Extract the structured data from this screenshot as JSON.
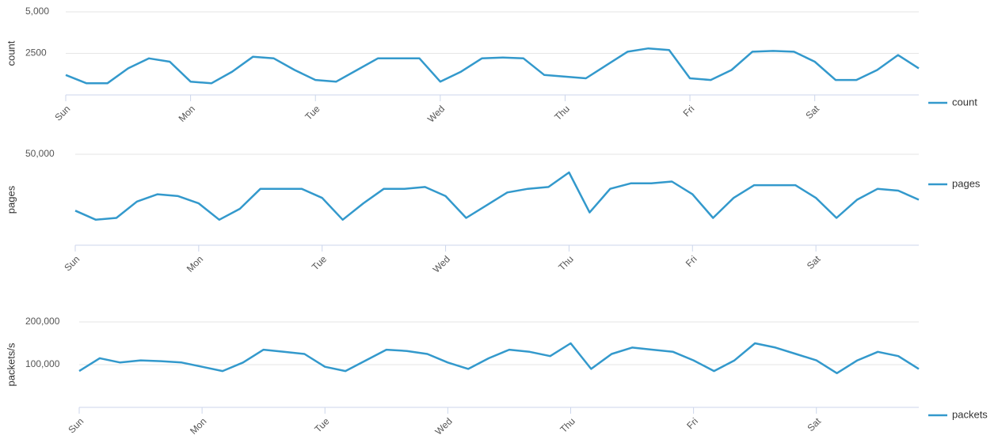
{
  "chart_data": [
    {
      "type": "line",
      "ylabel": "count",
      "categories": [
        "Sun",
        null,
        null,
        null,
        null,
        null,
        "Mon",
        null,
        null,
        null,
        null,
        null,
        "Tue",
        null,
        null,
        null,
        null,
        null,
        "Wed",
        null,
        null,
        null,
        null,
        null,
        "Thu",
        null,
        null,
        null,
        null,
        null,
        "Fri",
        null,
        null,
        null,
        null,
        null,
        "Sat",
        null,
        null,
        null,
        null,
        null
      ],
      "series": [
        {
          "name": "count",
          "color": "#3399cc",
          "values": [
            1200,
            700,
            700,
            1600,
            2200,
            2000,
            800,
            700,
            1400,
            2300,
            2200,
            1500,
            900,
            800,
            1500,
            2200,
            2200,
            2200,
            800,
            1400,
            2200,
            2250,
            2200,
            1200,
            1100,
            1000,
            1800,
            2600,
            2800,
            2700,
            1000,
            900,
            1500,
            2600,
            2650,
            2600,
            2000,
            900,
            900,
            1500,
            2400,
            1600
          ]
        }
      ],
      "ylim": [
        0,
        5000
      ],
      "yticks": [
        2500,
        {
          "value": 5000,
          "label": "5,000"
        }
      ],
      "grid": true,
      "legend": "right"
    },
    {
      "type": "line",
      "ylabel": "pages",
      "categories": [
        "Sun",
        null,
        null,
        null,
        null,
        null,
        "Mon",
        null,
        null,
        null,
        null,
        null,
        "Tue",
        null,
        null,
        null,
        null,
        null,
        "Wed",
        null,
        null,
        null,
        null,
        null,
        "Thu",
        null,
        null,
        null,
        null,
        null,
        "Fri",
        null,
        null,
        null,
        null,
        null,
        "Sat",
        null,
        null,
        null,
        null,
        null
      ],
      "series": [
        {
          "name": "pages",
          "color": "#3399cc",
          "values": [
            19000,
            14000,
            15000,
            24000,
            28000,
            27000,
            23000,
            14000,
            20000,
            31000,
            31000,
            31000,
            26000,
            14000,
            23000,
            31000,
            31000,
            32000,
            27000,
            15000,
            22000,
            29000,
            31000,
            32000,
            40000,
            18000,
            31000,
            34000,
            34000,
            35000,
            28000,
            15000,
            26000,
            33000,
            33000,
            33000,
            26000,
            15000,
            25000,
            31000,
            30000,
            25000
          ]
        }
      ],
      "ylim": [
        0,
        50000
      ],
      "yticks": [
        {
          "value": 50000,
          "label": "50,000"
        }
      ],
      "grid": true,
      "legend": "right"
    },
    {
      "type": "line",
      "ylabel": "packets/s",
      "categories": [
        "Sun",
        null,
        null,
        null,
        null,
        null,
        "Mon",
        null,
        null,
        null,
        null,
        null,
        "Tue",
        null,
        null,
        null,
        null,
        null,
        "Wed",
        null,
        null,
        null,
        null,
        null,
        "Thu",
        null,
        null,
        null,
        null,
        null,
        "Fri",
        null,
        null,
        null,
        null,
        null,
        "Sat",
        null,
        null,
        null,
        null,
        null
      ],
      "series": [
        {
          "name": "packets",
          "color": "#3399cc",
          "values": [
            85000,
            115000,
            105000,
            110000,
            108000,
            105000,
            95000,
            85000,
            105000,
            135000,
            130000,
            125000,
            95000,
            85000,
            110000,
            135000,
            132000,
            125000,
            105000,
            90000,
            115000,
            135000,
            130000,
            120000,
            150000,
            90000,
            125000,
            140000,
            135000,
            130000,
            110000,
            85000,
            110000,
            150000,
            140000,
            125000,
            110000,
            80000,
            110000,
            130000,
            120000,
            90000
          ]
        }
      ],
      "ylim": [
        0,
        200000
      ],
      "yticks": [
        {
          "value": 100000,
          "label": "100,000"
        },
        {
          "value": 200000,
          "label": "200,000"
        }
      ],
      "grid": true,
      "legend": "right"
    }
  ]
}
